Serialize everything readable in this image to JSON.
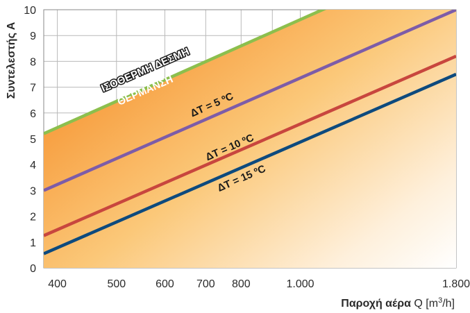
{
  "chart_data": {
    "type": "line",
    "xscale": "log",
    "xlim": [
      380,
      1800
    ],
    "ylim": [
      0,
      10
    ],
    "x_ticks": [
      400,
      500,
      600,
      700,
      800,
      1000,
      1800
    ],
    "x_tick_labels": [
      "400",
      "500",
      "600",
      "700",
      "800",
      "1.000",
      "1.800"
    ],
    "y_ticks": [
      0,
      1,
      2,
      3,
      4,
      5,
      6,
      7,
      8,
      9,
      10
    ],
    "y_tick_labels": [
      "0",
      "1",
      "2",
      "3",
      "4",
      "5",
      "6",
      "7",
      "8",
      "9",
      "10"
    ],
    "xlabel": {
      "bold": "Παροχή αέρα",
      "rest": " Q [m",
      "sup": "3",
      "tail": "/h]"
    },
    "ylabel": "Συντελεστής Α",
    "grid": true,
    "series": [
      {
        "name": "ΙΣΟΘΕΡΜΗ ΔΕΣΜΗ",
        "x": [
          380,
          1800
        ],
        "y": [
          5.2,
          12.3
        ],
        "color": "#8cbf4d"
      },
      {
        "name": "ΔT = 5 ºC",
        "x": [
          380,
          1800
        ],
        "y": [
          3.0,
          10.0
        ],
        "color": "#7d5ca8"
      },
      {
        "name": "ΔT = 10 ºC",
        "x": [
          380,
          1800
        ],
        "y": [
          1.25,
          8.2
        ],
        "color": "#c8463e"
      },
      {
        "name": "ΔT = 15 ºC",
        "x": [
          380,
          1800
        ],
        "y": [
          0.55,
          7.5
        ],
        "color": "#0d4a7e"
      }
    ],
    "annotations": [
      {
        "text": "ΙΣΟΘΕΡΜΗ ΔΕΣΜΗ",
        "x": 560,
        "y": 7.55,
        "color": "#ffffff",
        "stroke": "#1a1a1a"
      },
      {
        "text": "ΘΕΡΜΑΝΣΗ",
        "x": 560,
        "y": 6.75,
        "color": "#ffffff",
        "stroke": "none"
      },
      {
        "text": "ΔT = 5 ºC",
        "x": 720,
        "y": 6.2,
        "color": "#1a1a1a",
        "stroke": "none"
      },
      {
        "text": "ΔT = 10 ºC",
        "x": 770,
        "y": 4.55,
        "color": "#1a1a1a",
        "stroke": "none"
      },
      {
        "text": "ΔT = 15 ºC",
        "x": 805,
        "y": 3.35,
        "color": "#1a1a1a",
        "stroke": "none"
      }
    ]
  }
}
